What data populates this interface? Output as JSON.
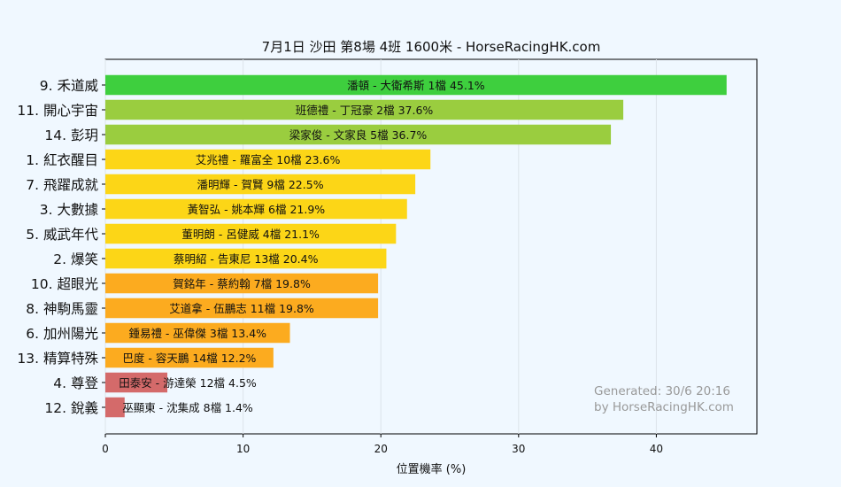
{
  "chart_data": {
    "type": "bar",
    "orientation": "horizontal",
    "title": "7月1日  沙田  第8場  4班  1600米 - HorseRacingHK.com",
    "xlabel": "位置機率 (%)",
    "ylabel": "",
    "xlim": [
      0,
      47.3
    ],
    "xticks": [
      0,
      10,
      20,
      30,
      40
    ],
    "grid": true,
    "categories": [
      "9. 禾道威",
      "11. 開心宇宙",
      "14. 彭玥",
      "1. 紅衣醒目",
      "7. 飛躍成就",
      "3. 大數據",
      "5. 威武年代",
      "2. 爆笑",
      "10. 超眼光",
      "8. 神駒馬靈",
      "6. 加州陽光",
      "13. 精算特殊",
      "4. 尊登",
      "12. 銳義"
    ],
    "values": [
      45.1,
      37.6,
      36.7,
      23.6,
      22.5,
      21.9,
      21.1,
      20.4,
      19.8,
      19.8,
      13.4,
      12.2,
      4.5,
      1.4
    ],
    "labels": [
      "潘頓 - 大衛希斯 1檔  45.1%",
      "班德禮 - 丁冠豪 2檔  37.6%",
      "梁家俊 - 文家良 5檔  36.7%",
      "艾兆禮 - 羅富全 10檔  23.6%",
      "潘明輝 - 賀賢 9檔  22.5%",
      "黃智弘 - 姚本輝 6檔  21.9%",
      "董明朗 - 呂健威 4檔  21.1%",
      "蔡明紹 - 告東尼 13檔  20.4%",
      "賀銘年 - 蔡約翰 7檔  19.8%",
      "艾道拿 - 伍鵬志 11檔  19.8%",
      "鍾易禮 - 巫偉傑 3檔  13.4%",
      "巴度 - 容天鵬 14檔  12.2%",
      "田泰安 - 游達榮 12檔  4.5%",
      "巫顯東 - 沈集成 8檔  1.4%"
    ],
    "colors": [
      "#3ecf3e",
      "#9acd3f",
      "#9acd3f",
      "#fcd617",
      "#fcd617",
      "#fcd617",
      "#fcd617",
      "#fcd617",
      "#fcab1f",
      "#fcab1f",
      "#fcab1f",
      "#fcab1f",
      "#d46a6a",
      "#d46a6a"
    ],
    "watermark": [
      "Generated: 30/6 20:16",
      "by HorseRacingHK.com"
    ]
  }
}
